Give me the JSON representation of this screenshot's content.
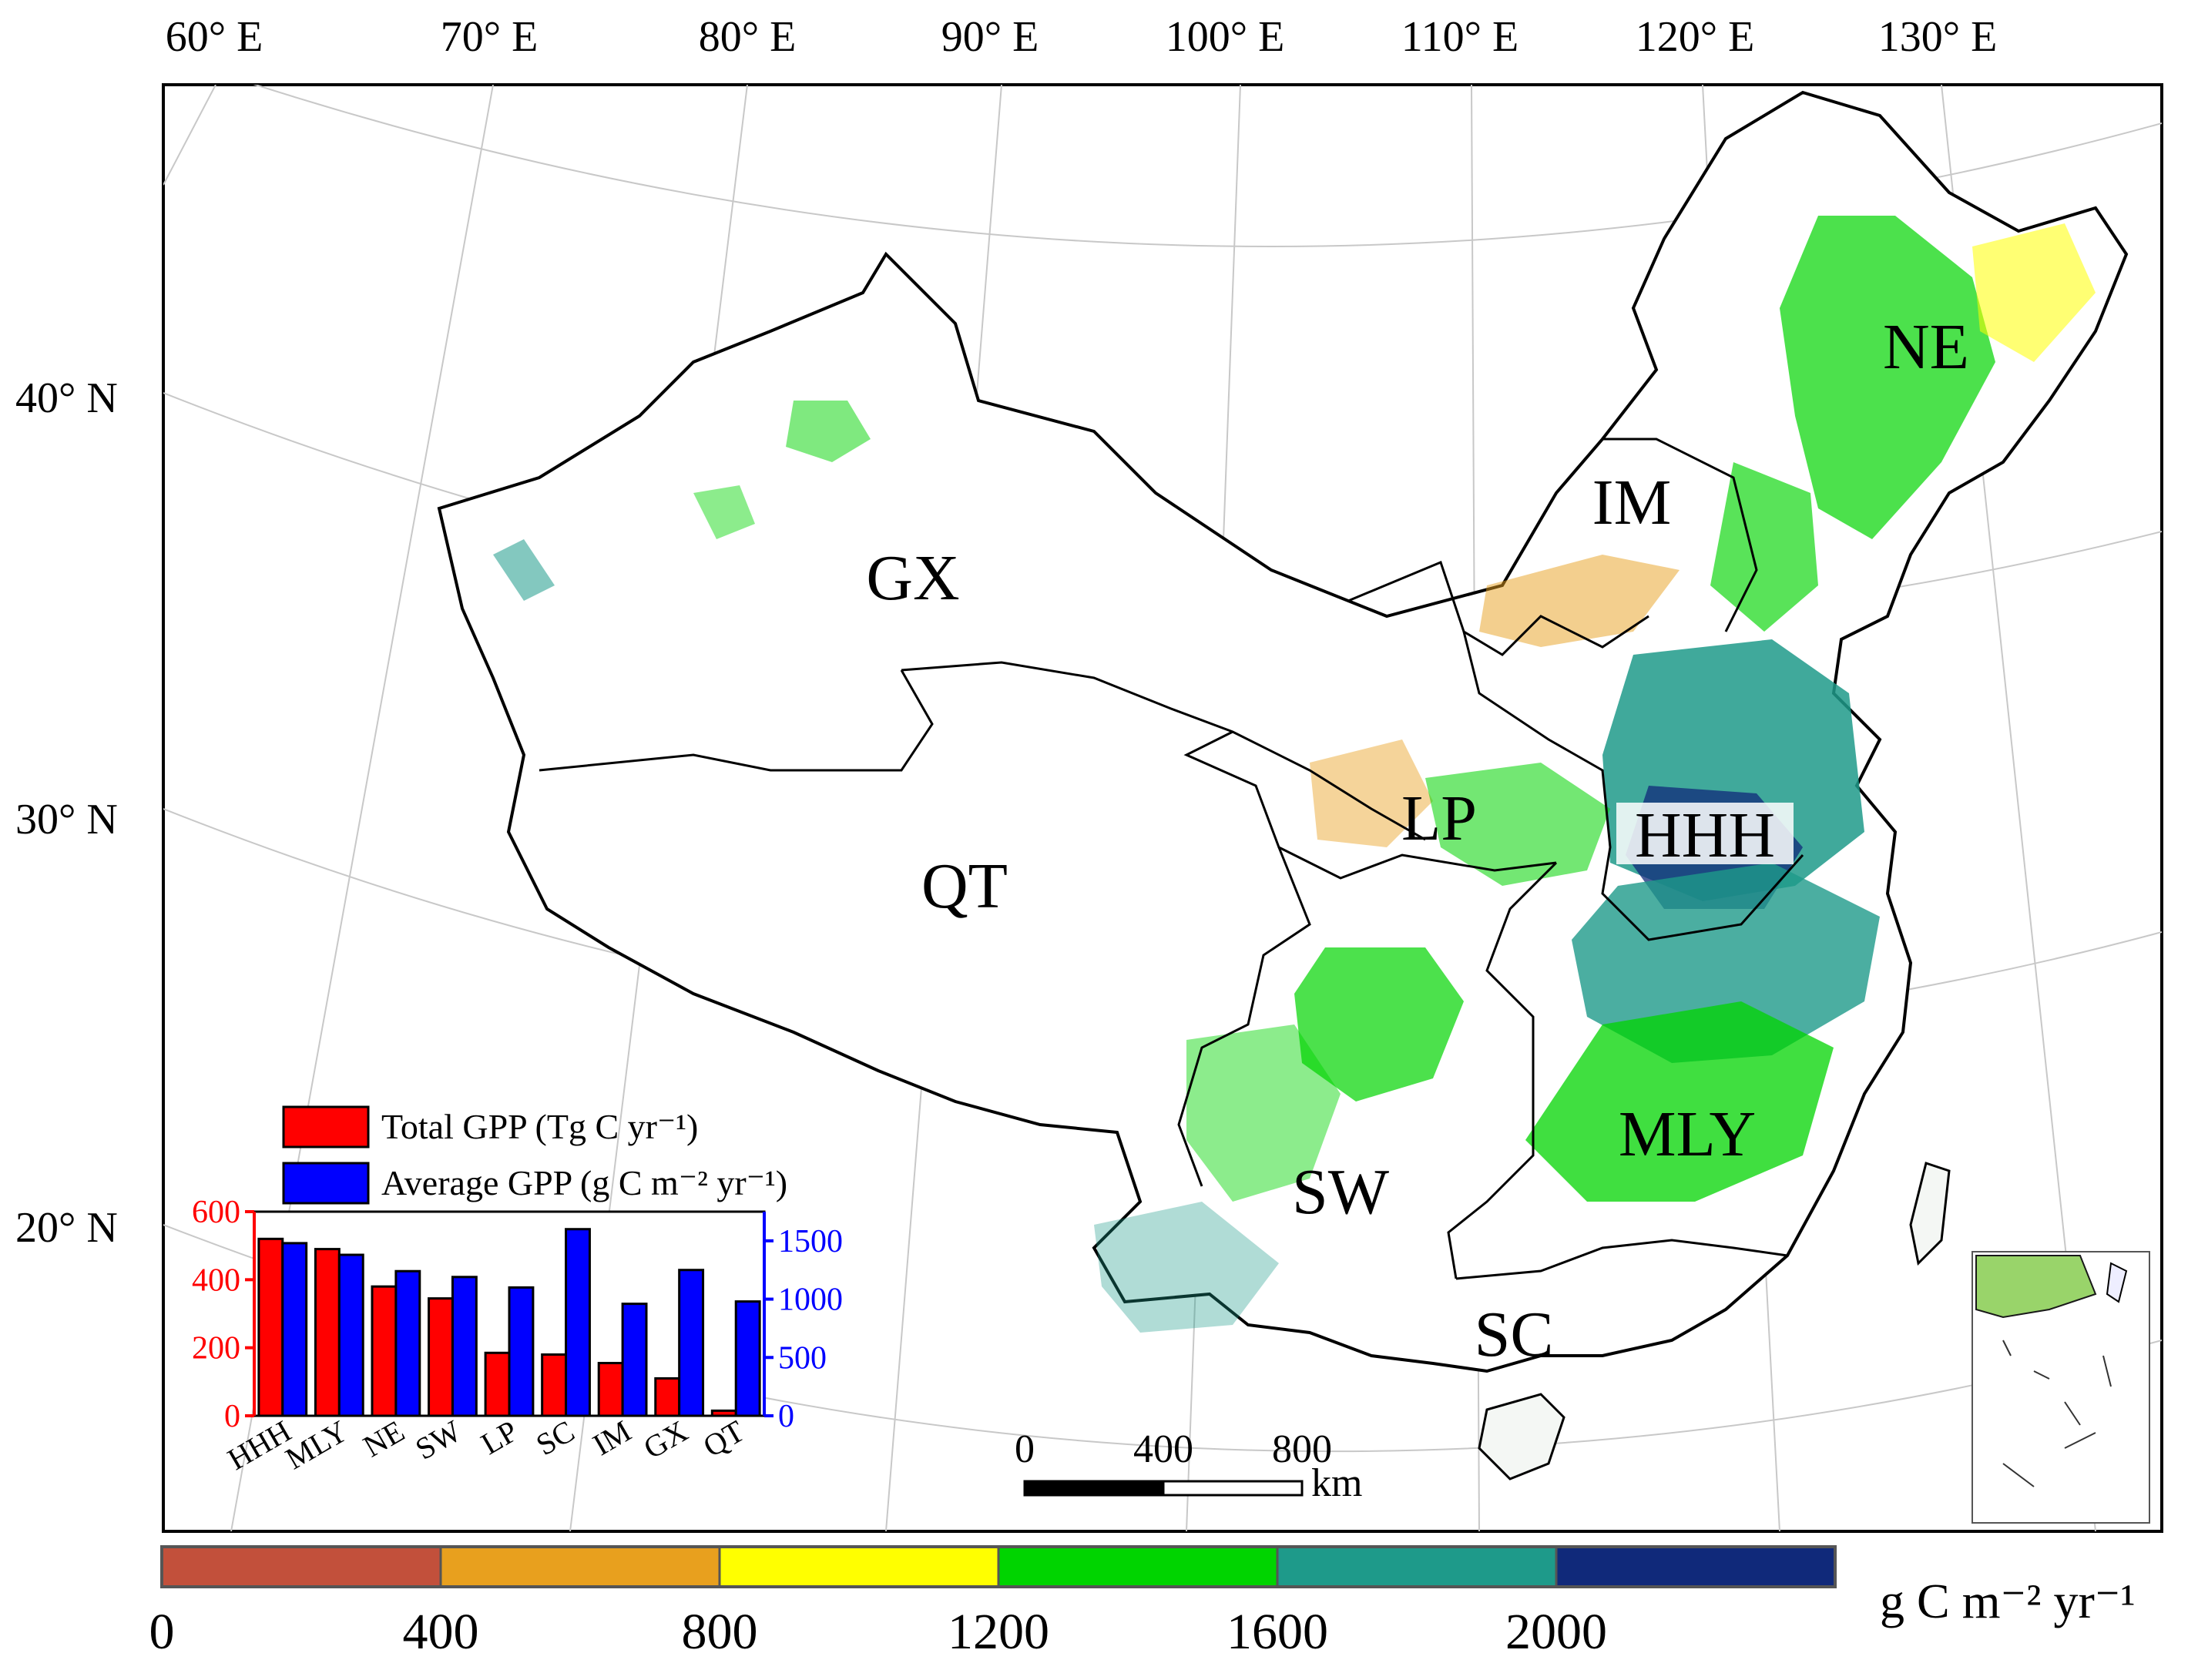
{
  "lon_labels": [
    "60° E",
    "70° E",
    "80° E",
    "90° E",
    "100° E",
    "110° E",
    "120° E",
    "130° E"
  ],
  "lat_labels": [
    "40° N",
    "30° N",
    "20° N"
  ],
  "regions": [
    "GX",
    "IM",
    "NE",
    "LP",
    "HHH",
    "QT",
    "SW",
    "MLY",
    "SC"
  ],
  "scalebar": {
    "ticks": [
      "0",
      "400",
      "800"
    ],
    "unit": "km"
  },
  "legend_colorbar": {
    "colors": [
      "#c2503b",
      "#e8a01e",
      "#ffff00",
      "#00d400",
      "#1e9a8a",
      "#10297a"
    ],
    "tick_labels": [
      "0",
      "400",
      "800",
      "1200",
      "1600",
      "2000"
    ],
    "unit_label": "g C m⁻² yr⁻¹"
  },
  "chart_data": {
    "type": "bar",
    "categories": [
      "HHH",
      "MLY",
      "NE",
      "SW",
      "LP",
      "SC",
      "IM",
      "GX",
      "QT"
    ],
    "series": [
      {
        "name": "Total GPP (Tg C yr⁻¹)",
        "color": "#ff0000",
        "axis": "left",
        "values": [
          520,
          490,
          380,
          345,
          185,
          180,
          155,
          110,
          15
        ]
      },
      {
        "name": "Average GPP (g C m⁻² yr⁻¹)",
        "color": "#0000ff",
        "axis": "right",
        "values": [
          1480,
          1380,
          1240,
          1190,
          1100,
          1600,
          960,
          1250,
          980
        ]
      }
    ],
    "left_axis": {
      "ylim": [
        0,
        600
      ],
      "ticks": [
        "0",
        "200",
        "400",
        "600"
      ],
      "color": "#ff0000"
    },
    "right_axis": {
      "ylim": [
        0,
        1750
      ],
      "ticks": [
        "0",
        "500",
        "1000",
        "1500"
      ],
      "color": "#0000ff"
    }
  }
}
